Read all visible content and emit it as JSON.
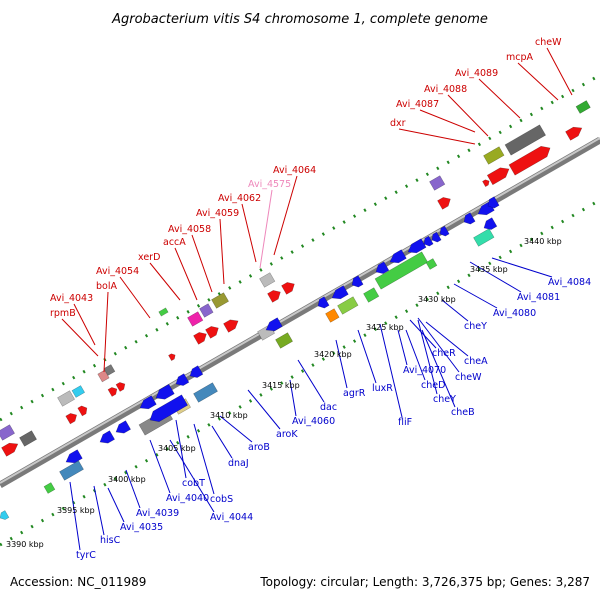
{
  "title": "Agrobacterium vitis S4 chromosome 1, complete genome",
  "footer": {
    "accession": "Accession: NC_011989",
    "summary": "Topology: circular; Length: 3,726,375 bp; Genes: 3,287"
  },
  "kbp_ticks": [
    "3390 kbp",
    "3395 kbp",
    "3400 kbp",
    "3405 kbp",
    "3410 kbp",
    "3415 kbp",
    "3420 kbp",
    "3425 kbp",
    "3430 kbp",
    "3435 kbp",
    "3440 kbp"
  ],
  "top_labels": [
    "rpmB",
    "Avi_4043",
    "bolA",
    "Avi_4054",
    "xerD",
    "accA",
    "Avi_4058",
    "Avi_4059",
    "Avi_4062",
    "Avi_4575",
    "Avi_4064",
    "dxr",
    "Avi_4087",
    "Avi_4088",
    "Avi_4089",
    "mcpA",
    "cheW"
  ],
  "bottom_labels": [
    "tyrC",
    "hisC",
    "Avi_4035",
    "Avi_4039",
    "Avi_4040",
    "Avi_4044",
    "cobT",
    "cobS",
    "dnaJ",
    "aroB",
    "aroK",
    "Avi_4060",
    "dac",
    "agrR",
    "luxR",
    "fliF",
    "Avi_4070",
    "cheD",
    "cheY",
    "cheB",
    "cheR",
    "cheW",
    "cheA",
    "cheY",
    "Avi_4080",
    "Avi_4081",
    "Avi_4084"
  ],
  "colors": {
    "forward_gene": "#ee1111",
    "reverse_gene": "#1111ee",
    "forward_label": "#cc0000",
    "reverse_label": "#0000cc",
    "pseudo_label": "#ee88bb",
    "backbone": "#a0a0a0",
    "dots": "#228822"
  }
}
